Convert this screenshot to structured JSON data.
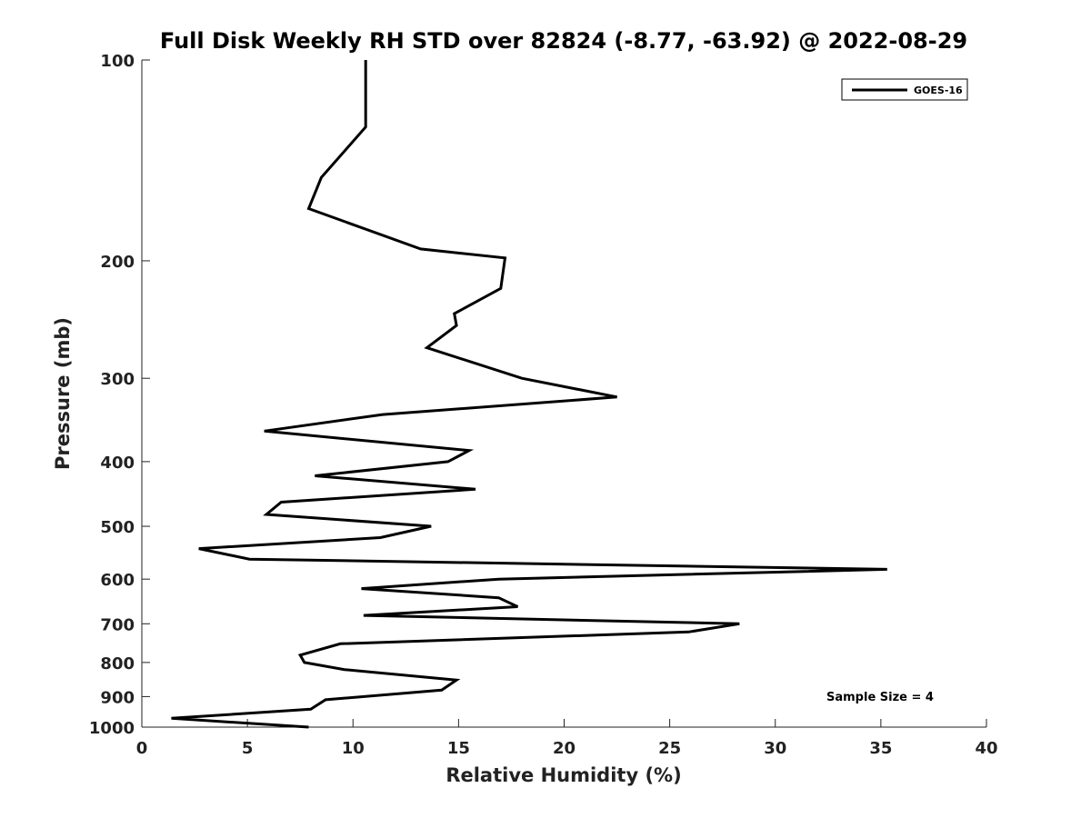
{
  "chart_data": {
    "type": "line",
    "title": "Full Disk Weekly RH STD over 82824 (-8.77, -63.92) @ 2022-08-29",
    "xlabel": "Relative Humidity (%)",
    "ylabel": "Pressure (mb)",
    "xlim": [
      0,
      40
    ],
    "ylim": [
      100,
      1000
    ],
    "y_scale": "log",
    "y_reversed": false,
    "grid": false,
    "x_ticks": [
      0,
      5,
      10,
      15,
      20,
      25,
      30,
      35,
      40
    ],
    "y_ticks": [
      100,
      200,
      300,
      400,
      500,
      600,
      700,
      800,
      900,
      1000
    ],
    "legend": {
      "placement": "top-right",
      "entries": [
        "GOES-16"
      ]
    },
    "annotation": "Sample Size = 4",
    "series": [
      {
        "name": "GOES-16",
        "color": "#000000",
        "x": [
          10.6,
          10.6,
          8.5,
          7.9,
          13.2,
          17.2,
          17.0,
          14.8,
          14.9,
          13.5,
          18.0,
          22.5,
          11.4,
          5.8,
          15.5,
          14.5,
          8.2,
          15.8,
          6.6,
          5.9,
          13.7,
          11.3,
          2.7,
          5.1,
          35.3,
          16.9,
          10.4,
          16.9,
          17.8,
          10.5,
          28.3,
          25.9,
          9.4,
          7.5,
          7.7,
          9.6,
          14.9,
          14.2,
          8.7,
          8.0,
          1.4,
          7.9
        ],
        "y": [
          100,
          126,
          150,
          167,
          192,
          198,
          220,
          240,
          250,
          270,
          300,
          320,
          340,
          360,
          385,
          400,
          420,
          440,
          460,
          480,
          500,
          520,
          540,
          560,
          580,
          600,
          620,
          640,
          660,
          680,
          700,
          720,
          750,
          780,
          800,
          820,
          850,
          880,
          910,
          940,
          970,
          1000
        ]
      }
    ]
  }
}
